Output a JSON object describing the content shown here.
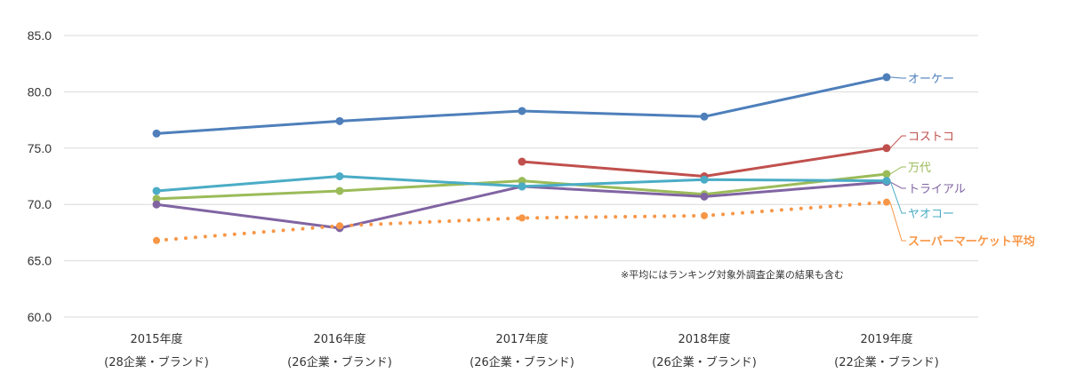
{
  "chart_data": {
    "type": "line",
    "title": "",
    "xlabel": "",
    "ylabel": "",
    "ylim": [
      60,
      85
    ],
    "yticks": [
      "85.0",
      "80.0",
      "75.0",
      "70.0",
      "65.0",
      "60.0"
    ],
    "grid": true,
    "categories": [
      {
        "year": "2015年度",
        "count": "(28企業・ブランド)"
      },
      {
        "year": "2016年度",
        "count": "(26企業・ブランド)"
      },
      {
        "year": "2017年度",
        "count": "(26企業・ブランド)"
      },
      {
        "year": "2018年度",
        "count": "(26企業・ブランド)"
      },
      {
        "year": "2019年度",
        "count": "(22企業・ブランド)"
      }
    ],
    "series": [
      {
        "name": "オーケー",
        "color": "#4E7FBB",
        "dashed": false,
        "values": [
          76.3,
          77.4,
          78.3,
          77.8,
          81.3
        ]
      },
      {
        "name": "コストコ",
        "color": "#C0504D",
        "dashed": false,
        "values": [
          null,
          null,
          73.8,
          72.5,
          75.0
        ]
      },
      {
        "name": "万代",
        "color": "#9BBB59",
        "dashed": false,
        "values": [
          70.5,
          71.2,
          72.1,
          70.9,
          72.7
        ]
      },
      {
        "name": "トライアル",
        "color": "#8064A2",
        "dashed": false,
        "values": [
          70.0,
          67.9,
          71.6,
          70.7,
          72.0
        ]
      },
      {
        "name": "ヤオコー",
        "color": "#4BACC6",
        "dashed": false,
        "values": [
          71.2,
          72.5,
          71.6,
          72.2,
          72.1
        ]
      },
      {
        "name": "スーパーマーケット平均",
        "color": "#F79646",
        "dashed": true,
        "values": [
          66.8,
          68.1,
          68.8,
          69.0,
          70.2
        ]
      }
    ],
    "annotation": "※平均にはランキング対象外調査企業の結果も含む"
  }
}
